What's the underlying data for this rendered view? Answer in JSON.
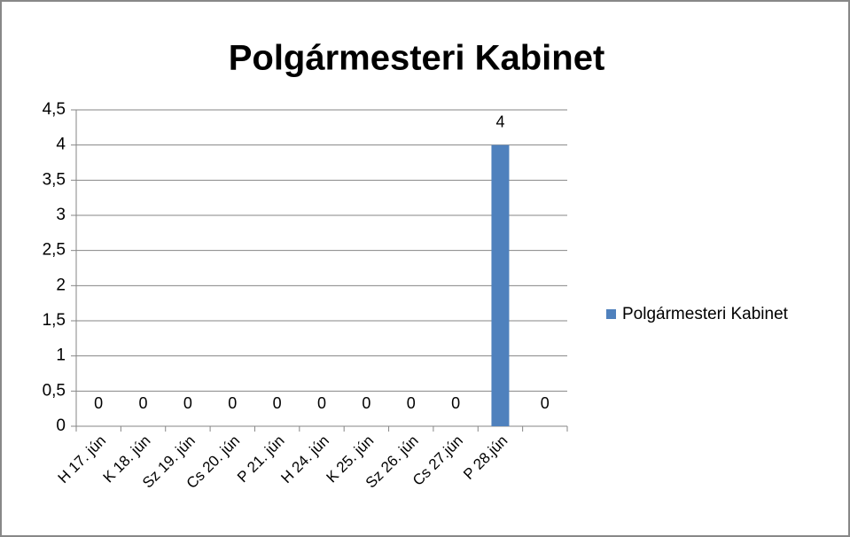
{
  "chart_data": {
    "type": "bar",
    "title": "Polgármesteri Kabinet",
    "categories": [
      "H 17. jún",
      "K 18. jún",
      "Sz 19. jún",
      "Cs 20. jún",
      "P 21. jún",
      "H 24. jún",
      "K 25. jún",
      "Sz 26. jún",
      "Cs 27.jún",
      "P 28.jún",
      null
    ],
    "series": [
      {
        "name": "Polgármesteri Kabinet",
        "color": "#4f81bd",
        "values": [
          0,
          0,
          0,
          0,
          0,
          0,
          0,
          0,
          0,
          4,
          0
        ]
      }
    ],
    "ylim": [
      0,
      4.5
    ],
    "yticks": [
      0,
      {
        "value": 0.5,
        "label": "0,5"
      },
      1,
      {
        "value": 1.5,
        "label": "1,5"
      },
      2,
      {
        "value": 2.5,
        "label": "2,5"
      },
      3,
      {
        "value": 3.5,
        "label": "3,5"
      },
      4,
      {
        "value": 4.5,
        "label": "4,5"
      }
    ],
    "grid": true,
    "legend": "right",
    "data_labels": true
  }
}
